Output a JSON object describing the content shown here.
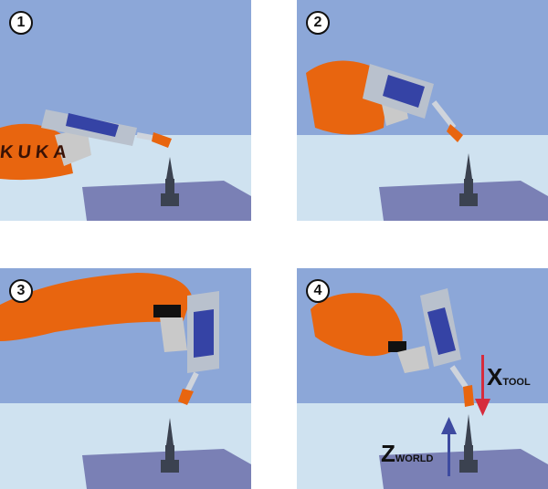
{
  "panels": [
    {
      "step": "1",
      "logo_text": "KUKA"
    },
    {
      "step": "2"
    },
    {
      "step": "3"
    },
    {
      "step": "4"
    }
  ],
  "axes": {
    "x_tool": {
      "letter": "X",
      "subscript": "TOOL",
      "color": "#d62b3c"
    },
    "z_world": {
      "letter": "Z",
      "subscript": "WORLD",
      "color": "#3d4aa0"
    }
  },
  "colors": {
    "sky": "#8aa4d6",
    "floor": "#cde1ef",
    "table": "#7b82b6",
    "robot": "#e8650f",
    "tool_blue": "#3543a5",
    "tool_grey": "#b8c0cc",
    "pin": "#3b4250"
  },
  "icons": [
    "robot-arm-icon",
    "welding-torch-icon",
    "reference-pin-icon",
    "arrow-up-icon",
    "arrow-down-icon"
  ]
}
